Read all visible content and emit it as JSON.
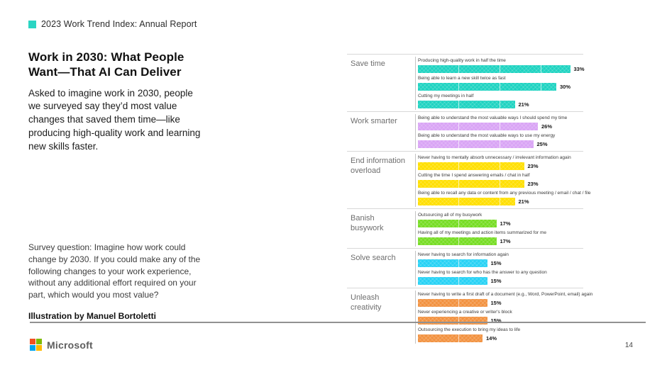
{
  "header": {
    "title": "2023 Work Trend Index: Annual Report",
    "accent_color": "#2bd5c3"
  },
  "left": {
    "title": "Work in 2030: What People Want—That AI Can Deliver",
    "intro": "Asked to imagine work in 2030, people we surveyed say they’d most value changes that saved them time—like producing high-quality work and learning new skills faster.",
    "survey_question": "Survey question: Imagine how work could change by 2030. If you could make any of the following changes to your work experience, without any additional effort required on your part, which would you most value?",
    "credit": "Illustration by Manuel Bortoletti"
  },
  "chart_data": {
    "type": "bar",
    "orientation": "horizontal",
    "value_suffix": "%",
    "xlim": [
      0,
      36.5
    ],
    "grid": false,
    "groups": [
      {
        "category": "Save time",
        "color": "#1ed3c1",
        "items": [
          {
            "label": "Producing high-quality work in half the time",
            "value": 33
          },
          {
            "label": "Being able to learn a new skill twice as fast",
            "value": 30
          },
          {
            "label": "Cutting my meetings in half",
            "value": 21
          }
        ]
      },
      {
        "category": "Work smarter",
        "color": "#d9a4f5",
        "items": [
          {
            "label": "Being able to understand the most valuable ways I should spend my time",
            "value": 26
          },
          {
            "label": "Being able to understand the most valuable ways to use my energy",
            "value": 25
          }
        ]
      },
      {
        "category": "End information overload",
        "color": "#ffdf00",
        "items": [
          {
            "label": "Never having to mentally absorb unnecessary / irrelevant information again",
            "value": 23
          },
          {
            "label": "Cutting the time I spend answering emails / chat in half",
            "value": 23
          },
          {
            "label": "Being able to recall any data or content from any previous meeting / email / chat / file",
            "value": 21
          }
        ]
      },
      {
        "category": "Banish busywork",
        "color": "#76dd23",
        "items": [
          {
            "label": "Outsourcing all of my busywork",
            "value": 17
          },
          {
            "label": "Having all of my meetings and action items summarized for me",
            "value": 17
          }
        ]
      },
      {
        "category": "Solve search",
        "color": "#27d2f5",
        "items": [
          {
            "label": "Never having to search for information again",
            "value": 15
          },
          {
            "label": "Never having to search for who has the answer to any question",
            "value": 15
          }
        ]
      },
      {
        "category": "Unleash creativity",
        "color": "#f29240",
        "items": [
          {
            "label": "Never having to write a first draft of a document (e.g., Word, PowerPoint, email) again",
            "value": 15
          },
          {
            "label": "Never experiencing a creative or writer's block",
            "value": 15
          },
          {
            "label": "Outsourcing the execution to bring my ideas to life",
            "value": 14
          }
        ]
      }
    ]
  },
  "footer": {
    "brand": "Microsoft",
    "page_number": "14",
    "logo_colors": [
      "#f25022",
      "#7fba00",
      "#00a4ef",
      "#ffb900"
    ]
  }
}
